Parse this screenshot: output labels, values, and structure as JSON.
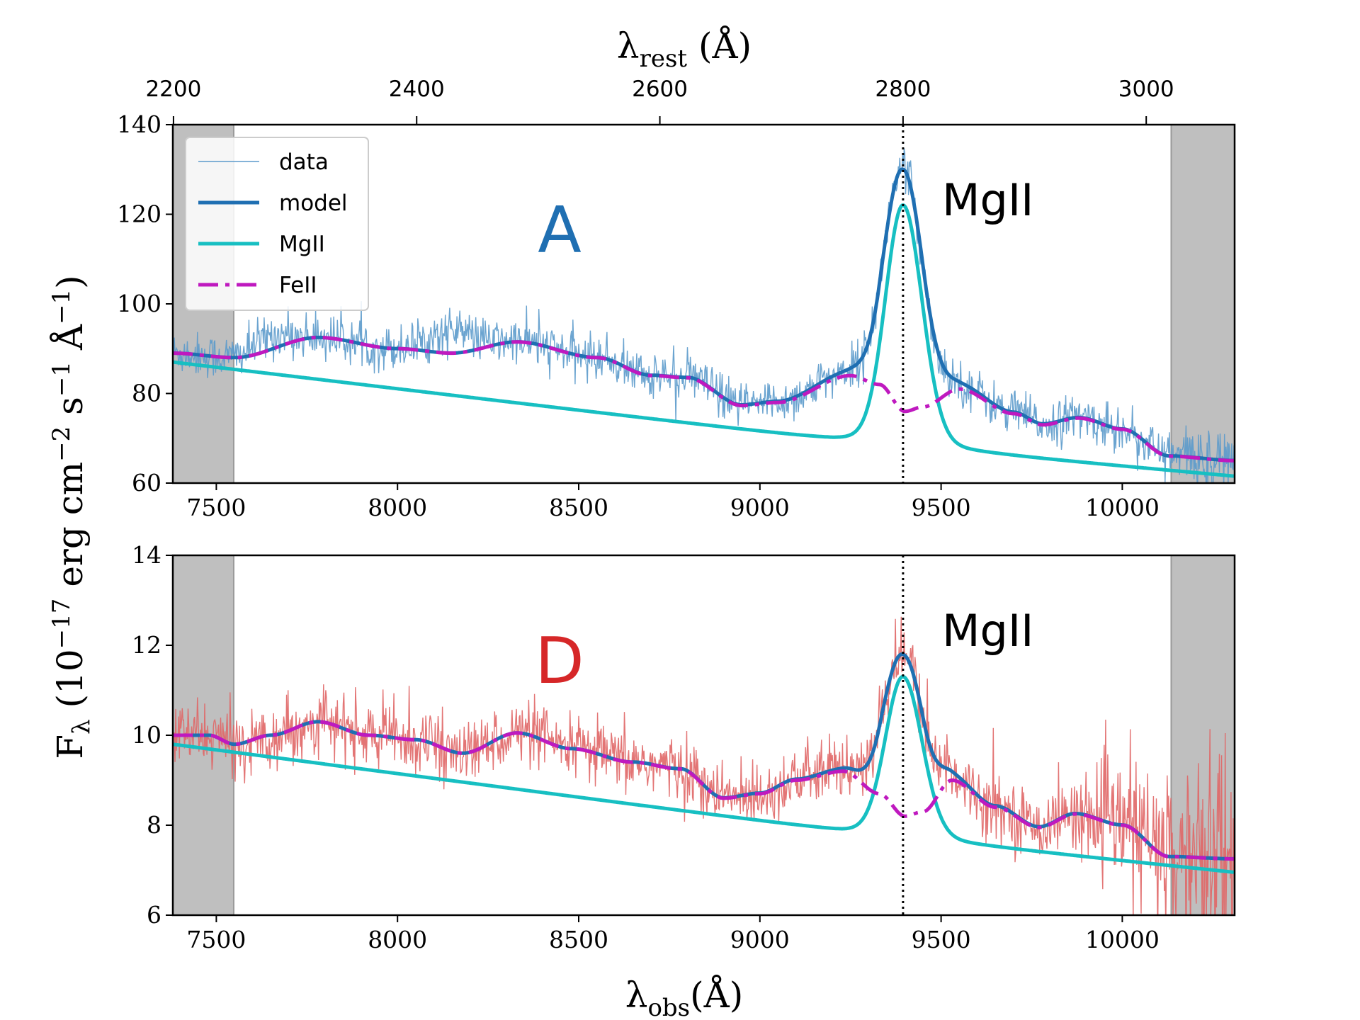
{
  "chart_data": {
    "type": "line",
    "shared_legend": [
      {
        "label": "data",
        "color": "#5b9acb",
        "style": "thin"
      },
      {
        "label": "model",
        "color": "#1f6fb2",
        "style": "solid"
      },
      {
        "label": "MgII",
        "color": "#17bfc2",
        "style": "solid"
      },
      {
        "label": "FeII",
        "color": "#bf19bf",
        "style": "dashdot"
      }
    ],
    "legend_position": "upper-left",
    "xlabel_top_parts": {
      "symbol": "λ",
      "sub": "rest",
      "unit": " (Å)"
    },
    "xlabel_bottom_parts": {
      "symbol": "λ",
      "sub": "obs",
      "unit": "(Å)"
    },
    "ylabel_parts": [
      "F",
      "λ",
      " (10",
      "−17",
      " erg cm",
      "−2",
      " s",
      "−1",
      " Å",
      "−1",
      ")"
    ],
    "x_top_ticks": [
      "2200",
      "2400",
      "2600",
      "2800",
      "3000"
    ],
    "x_top_tick_values": [
      2200,
      2400,
      2600,
      2800,
      3000
    ],
    "x_bottom_ticks": [
      "7500",
      "8000",
      "8500",
      "9000",
      "9500",
      "10000"
    ],
    "x_bottom_tick_values": [
      7500,
      8000,
      8500,
      9000,
      9500,
      10000
    ],
    "xlim": [
      7380,
      10310
    ],
    "masked_regions": [
      [
        7380,
        7548
      ],
      [
        10135,
        10310
      ]
    ],
    "mgii_line_obs": 9395,
    "panels": [
      {
        "letter": "A",
        "letter_color": "#1f6fb2",
        "annotation": "MgII",
        "ylim": [
          60,
          140
        ],
        "y_ticks": [
          "60",
          "80",
          "100",
          "120",
          "140"
        ],
        "y_tick_values": [
          60,
          80,
          100,
          120,
          140
        ],
        "data_color": "#5b9acb",
        "noise": 2.5,
        "continuum": [
          [
            7380,
            87
          ],
          [
            9200,
            69.5
          ],
          [
            10310,
            61.5
          ]
        ],
        "mgii_peak": 119,
        "feii": [
          [
            7380,
            89
          ],
          [
            7550,
            88
          ],
          [
            7780,
            92.5
          ],
          [
            8000,
            90
          ],
          [
            8150,
            89
          ],
          [
            8330,
            91.5
          ],
          [
            8550,
            88
          ],
          [
            8700,
            84
          ],
          [
            8800,
            83.5
          ],
          [
            8950,
            77.3
          ],
          [
            9050,
            78
          ],
          [
            9250,
            84
          ],
          [
            9330,
            82
          ],
          [
            9400,
            76
          ],
          [
            9450,
            77
          ],
          [
            9550,
            81
          ],
          [
            9700,
            75.5
          ],
          [
            9780,
            73
          ],
          [
            9880,
            74.5
          ],
          [
            10000,
            72
          ],
          [
            10130,
            66
          ],
          [
            10310,
            65
          ]
        ]
      },
      {
        "letter": "D",
        "letter_color": "#d62728",
        "annotation": "MgII",
        "ylim": [
          6,
          14
        ],
        "y_ticks": [
          "6",
          "8",
          "10",
          "12",
          "14"
        ],
        "y_tick_values": [
          6,
          8,
          10,
          12,
          14
        ],
        "data_color": "#e06666",
        "noise": 0.35,
        "continuum": [
          [
            7380,
            9.8
          ],
          [
            9230,
            7.85
          ],
          [
            10310,
            6.95
          ]
        ],
        "mgii_peak": 11.1,
        "feii": [
          [
            7380,
            10
          ],
          [
            7480,
            10
          ],
          [
            7550,
            9.8
          ],
          [
            7650,
            10
          ],
          [
            7780,
            10.3
          ],
          [
            7920,
            10
          ],
          [
            8050,
            9.9
          ],
          [
            8180,
            9.6
          ],
          [
            8330,
            10.05
          ],
          [
            8480,
            9.7
          ],
          [
            8650,
            9.4
          ],
          [
            8780,
            9.25
          ],
          [
            8900,
            8.6
          ],
          [
            9000,
            8.7
          ],
          [
            9100,
            9
          ],
          [
            9230,
            9.2
          ],
          [
            9330,
            8.7
          ],
          [
            9400,
            8.2
          ],
          [
            9450,
            8.3
          ],
          [
            9530,
            9
          ],
          [
            9650,
            8.4
          ],
          [
            9770,
            7.95
          ],
          [
            9870,
            8.25
          ],
          [
            10000,
            8
          ],
          [
            10130,
            7.3
          ],
          [
            10310,
            7.25
          ]
        ]
      }
    ]
  }
}
